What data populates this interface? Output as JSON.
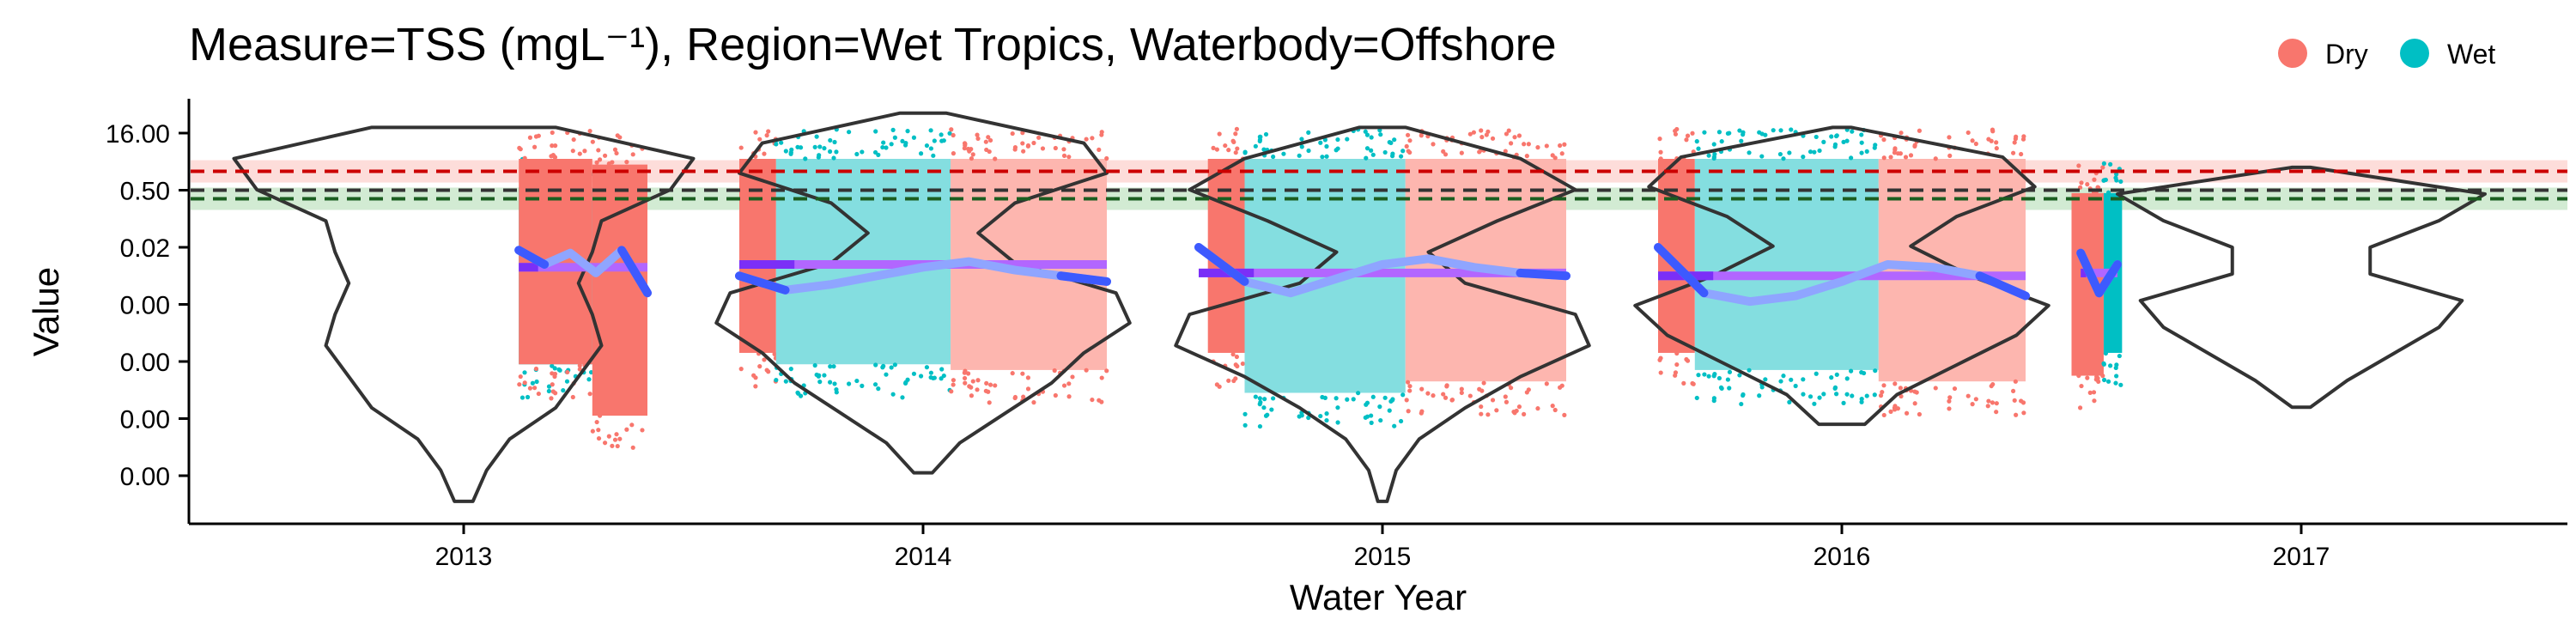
{
  "chart_data": {
    "type": "violin",
    "title": "Measure=TSS (mgL⁻¹), Region=Wet Tropics, Waterbody=Offshore",
    "xlabel": "Water Year",
    "ylabel": "Value",
    "x_ticks": [
      "2013",
      "2014",
      "2015",
      "2016",
      "2017"
    ],
    "y_ticks": [
      "16.00",
      "0.50",
      "0.02",
      "0.00",
      "0.00",
      "0.00",
      "0.00"
    ],
    "y_scale": "log",
    "grid": false,
    "legend": {
      "position": "top-right",
      "entries": [
        {
          "label": "Dry",
          "color": "#F8766D"
        },
        {
          "label": "Wet",
          "color": "#00BFC4"
        }
      ]
    },
    "guidelines": [
      {
        "color": "#CC0000",
        "style": "dashed",
        "band_color": "#F8766D",
        "level_tick": 0.67
      },
      {
        "color": "#333333",
        "style": "dashed",
        "level_tick": 1.0
      },
      {
        "color": "#1B5E20",
        "style": "dashed",
        "band_color": "#4CAF50",
        "level_tick": 1.15
      }
    ],
    "years": [
      {
        "label": "2013",
        "violin": {
          "top": -0.1,
          "bottom": 6.45,
          "width": [
            0.2,
            0.5,
            0.45,
            0.3,
            0.28,
            0.25,
            0.28,
            0.3,
            0.25,
            0.2,
            0.1,
            0.05,
            0.02
          ]
        },
        "series": [
          {
            "season": "Wet",
            "start": 0.12,
            "end": 0.28,
            "top": 0.5,
            "bottom": 4.5
          },
          {
            "season": "Dry",
            "start": 0.12,
            "end": 0.28,
            "top": 0.0,
            "bottom": 4.5
          },
          {
            "season": "Dry",
            "start": 0.28,
            "end": 0.4,
            "top": 0.1,
            "bottom": 5.4
          }
        ],
        "mean_tick": 2.35,
        "mean_span": [
          0.12,
          0.4
        ],
        "trend": [
          2.05,
          2.3,
          2.1,
          2.45,
          2.05,
          2.8
        ]
      },
      {
        "label": "2014",
        "violin": {
          "top": -0.35,
          "bottom": 5.95,
          "width": [
            0.05,
            0.35,
            0.4,
            0.2,
            0.12,
            0.2,
            0.42,
            0.45,
            0.35,
            0.28,
            0.18,
            0.08,
            0.02
          ]
        },
        "series": [
          {
            "season": "Dry",
            "start": -0.4,
            "end": -0.32,
            "top": 0.0,
            "bottom": 4.3
          },
          {
            "season": "Wet",
            "start": -0.32,
            "end": 0.06,
            "top": 0.0,
            "bottom": 4.5
          },
          {
            "season": "Dry",
            "start": 0.06,
            "end": 0.4,
            "top": 0.0,
            "bottom": 4.6
          }
        ],
        "mean_tick": 2.3,
        "mean_span": [
          -0.4,
          0.4
        ],
        "trend": [
          2.5,
          2.75,
          2.65,
          2.5,
          2.35,
          2.25,
          2.4,
          2.5,
          2.6
        ]
      },
      {
        "label": "2015",
        "violin": {
          "top": -0.1,
          "bottom": 6.45,
          "width": [
            0.05,
            0.3,
            0.42,
            0.25,
            0.1,
            0.18,
            0.42,
            0.45,
            0.3,
            0.18,
            0.08,
            0.03,
            0.01
          ]
        },
        "series": [
          {
            "season": "Dry",
            "start": -0.38,
            "end": -0.3,
            "top": 0.0,
            "bottom": 4.3
          },
          {
            "season": "Wet",
            "start": -0.3,
            "end": 0.05,
            "top": 0.0,
            "bottom": 5.0
          },
          {
            "season": "Dry",
            "start": 0.05,
            "end": 0.4,
            "top": 0.0,
            "bottom": 4.8
          }
        ],
        "mean_tick": 2.45,
        "mean_span": [
          -0.4,
          0.4
        ],
        "trend": [
          2.0,
          2.6,
          2.8,
          2.55,
          2.3,
          2.2,
          2.35,
          2.45,
          2.5
        ]
      },
      {
        "label": "2016",
        "violin": {
          "top": -0.1,
          "bottom": 5.1,
          "width": [
            0.02,
            0.35,
            0.42,
            0.25,
            0.15,
            0.28,
            0.45,
            0.38,
            0.25,
            0.12,
            0.05
          ]
        },
        "series": [
          {
            "season": "Dry",
            "start": -0.4,
            "end": -0.32,
            "top": 0.0,
            "bottom": 4.3
          },
          {
            "season": "Wet",
            "start": -0.32,
            "end": 0.08,
            "top": 0.0,
            "bottom": 4.6
          },
          {
            "season": "Dry",
            "start": 0.08,
            "end": 0.4,
            "top": 0.0,
            "bottom": 4.8
          }
        ],
        "mean_tick": 2.5,
        "mean_span": [
          -0.4,
          0.4
        ],
        "trend": [
          2.0,
          2.8,
          2.95,
          2.85,
          2.6,
          2.3,
          2.35,
          2.5,
          2.85
        ]
      },
      {
        "label": "2017",
        "violin": {
          "top": 0.6,
          "bottom": 4.8,
          "width": [
            0.02,
            0.4,
            0.3,
            0.15,
            0.15,
            0.35,
            0.3,
            0.2,
            0.1,
            0.02
          ]
        },
        "series": [
          {
            "season": "Dry",
            "start": -0.5,
            "end": -0.43,
            "top": 0.6,
            "bottom": 4.7
          },
          {
            "season": "Wet",
            "start": -0.43,
            "end": -0.39,
            "top": 0.6,
            "bottom": 4.3
          }
        ],
        "mean_tick": 2.45,
        "mean_span": [
          -0.48,
          -0.4
        ],
        "trend": [
          2.1,
          2.8,
          2.3
        ]
      }
    ],
    "colors": {
      "dry": "#F8766D",
      "dry_light": "#FDB6AF",
      "wet": "#00BFC4",
      "wet_light": "#84DEE0",
      "violin": "#333333",
      "trend": "#3D5AFE",
      "trend_light": "#8FA5FF",
      "mean": "#B266FF",
      "mean_dark": "#7B2FF7"
    }
  }
}
